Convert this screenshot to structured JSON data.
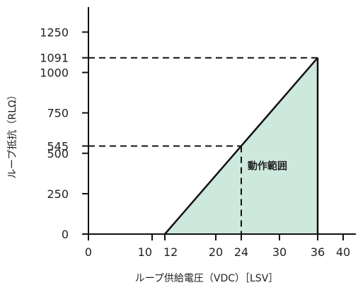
{
  "chart_data": {
    "type": "area",
    "xlabel": "ループ供給電圧（VDC）［LSV］",
    "ylabel": "ループ抵抗（RLΩ）",
    "xlim": [
      0,
      43
    ],
    "ylim": [
      0,
      1400
    ],
    "x_ticks": [
      {
        "value": 0,
        "label": "0"
      },
      {
        "value": 10,
        "label": "10"
      },
      {
        "value": 12,
        "label": "12"
      },
      {
        "value": 20,
        "label": "20"
      },
      {
        "value": 24,
        "label": "24"
      },
      {
        "value": 30,
        "label": "30"
      },
      {
        "value": 36,
        "label": "36"
      },
      {
        "value": 40,
        "label": "40"
      }
    ],
    "y_ticks": [
      {
        "value": 0,
        "label": "0"
      },
      {
        "value": 250,
        "label": "250"
      },
      {
        "value": 500,
        "label": "500"
      },
      {
        "value": 545,
        "label": "545"
      },
      {
        "value": 750,
        "label": "750"
      },
      {
        "value": 1000,
        "label": "1000"
      },
      {
        "value": 1091,
        "label": "1091"
      },
      {
        "value": 1250,
        "label": "1250"
      }
    ],
    "region": {
      "label": "動作範囲",
      "color": "#cde8dc",
      "points": [
        {
          "x": 12,
          "y": 0
        },
        {
          "x": 36,
          "y": 1091
        },
        {
          "x": 36,
          "y": 0
        }
      ]
    },
    "reference_lines": [
      {
        "x": 24,
        "y": 545
      },
      {
        "x": 36,
        "y": 1091
      }
    ],
    "grid": false
  }
}
